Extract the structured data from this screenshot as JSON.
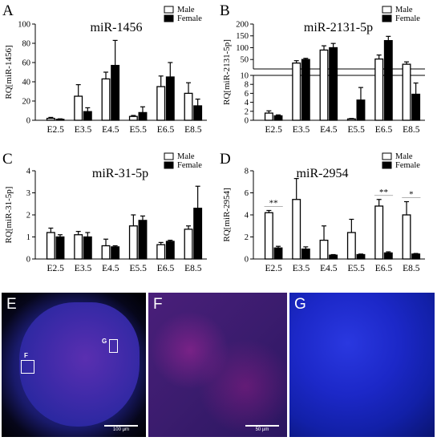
{
  "legend": {
    "male": "Male",
    "female": "Female"
  },
  "panels": {
    "A": {
      "letter": "A"
    },
    "B": {
      "letter": "B"
    },
    "C": {
      "letter": "C"
    },
    "D": {
      "letter": "D"
    }
  },
  "chart_data": [
    {
      "type": "bar",
      "panel": "A",
      "title": "miR-1456",
      "ylabel": "RQ[miR-1456]",
      "categories": [
        "E2.5",
        "E3.5",
        "E4.5",
        "E5.5",
        "E6.5",
        "E8.5"
      ],
      "ylim": [
        0,
        100
      ],
      "yticks": [
        0,
        20,
        40,
        60,
        80,
        100
      ],
      "series": [
        {
          "name": "Male",
          "color": "#ffffff",
          "values": [
            2,
            25,
            43,
            4,
            35,
            28
          ],
          "errors": [
            1,
            12,
            7,
            1,
            11,
            11
          ]
        },
        {
          "name": "Female",
          "color": "#000000",
          "values": [
            1,
            9,
            57,
            8,
            45,
            15
          ],
          "errors": [
            0.5,
            4,
            26,
            6,
            15,
            7
          ]
        }
      ]
    },
    {
      "type": "bar",
      "panel": "B",
      "title": "miR-2131-5p",
      "ylabel": "RQ[miR-2131-5p]",
      "categories": [
        "E2.5",
        "E3.5",
        "E4.5",
        "E5.5",
        "E6.5",
        "E8.5"
      ],
      "broken_axis": {
        "lower": [
          0,
          10
        ],
        "upper": [
          10,
          200
        ]
      },
      "yticks_lower": [
        0,
        2,
        4,
        6,
        8,
        10
      ],
      "yticks_upper": [
        50,
        100,
        150,
        200
      ],
      "series": [
        {
          "name": "Male",
          "color": "#ffffff",
          "values": [
            1.6,
            35,
            90,
            0.3,
            52,
            30
          ],
          "errors": [
            0.5,
            10,
            18,
            0.1,
            17,
            10
          ]
        },
        {
          "name": "Female",
          "color": "#000000",
          "values": [
            1.0,
            50,
            100,
            4.5,
            130,
            5.8
          ],
          "errors": [
            0.2,
            5,
            18,
            2.8,
            18,
            2.5
          ]
        }
      ]
    },
    {
      "type": "bar",
      "panel": "C",
      "title": "miR-31-5p",
      "ylabel": "RQ[miR-31-5p]",
      "categories": [
        "E2.5",
        "E3.5",
        "E4.5",
        "E5.5",
        "E6.5",
        "E8.5"
      ],
      "ylim": [
        0,
        4
      ],
      "yticks": [
        0,
        1,
        2,
        3,
        4
      ],
      "series": [
        {
          "name": "Male",
          "color": "#ffffff",
          "values": [
            1.2,
            1.1,
            0.6,
            1.5,
            0.65,
            1.35
          ],
          "errors": [
            0.2,
            0.15,
            0.3,
            0.5,
            0.1,
            0.15
          ]
        },
        {
          "name": "Female",
          "color": "#000000",
          "values": [
            1.0,
            1.0,
            0.55,
            1.75,
            0.8,
            2.3
          ],
          "errors": [
            0.1,
            0.2,
            0.05,
            0.2,
            0.05,
            1.0
          ]
        }
      ]
    },
    {
      "type": "bar",
      "panel": "D",
      "title": "miR-2954",
      "ylabel": "RQ[miR-2954]",
      "categories": [
        "E2.5",
        "E3.5",
        "E4.5",
        "E5.5",
        "E6.5",
        "E8.5"
      ],
      "ylim": [
        0,
        8
      ],
      "yticks": [
        0,
        2,
        4,
        6,
        8
      ],
      "significance": [
        "**",
        "",
        "",
        "",
        "**",
        "*"
      ],
      "series": [
        {
          "name": "Male",
          "color": "#ffffff",
          "values": [
            4.2,
            5.4,
            1.7,
            2.4,
            4.8,
            4.0
          ],
          "errors": [
            0.2,
            1.9,
            1.3,
            1.2,
            0.6,
            1.2
          ]
        },
        {
          "name": "Female",
          "color": "#000000",
          "values": [
            1.0,
            0.9,
            0.35,
            0.4,
            0.55,
            0.45
          ],
          "errors": [
            0.15,
            0.2,
            0.05,
            0.05,
            0.1,
            0.05
          ]
        }
      ]
    }
  ],
  "micrographs": {
    "E": {
      "label": "E",
      "scale": "100 µm",
      "box_f": "F",
      "box_g": "G"
    },
    "F": {
      "label": "F",
      "scale": "50 µm"
    },
    "G": {
      "label": "G"
    }
  }
}
